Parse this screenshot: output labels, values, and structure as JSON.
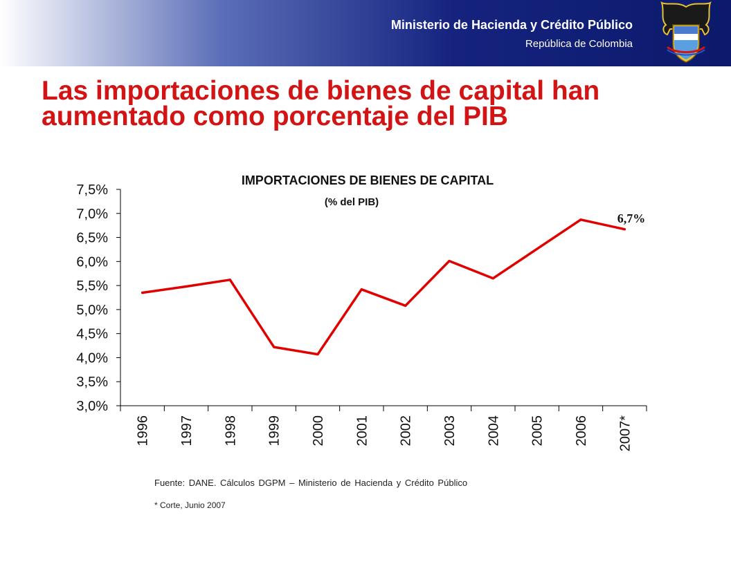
{
  "header": {
    "ministry": "Ministerio de Hacienda y Crédito Público",
    "country": "República de Colombia"
  },
  "slide": {
    "title": "Las importaciones de bienes de capital han aumentado como porcentaje del PIB"
  },
  "chart_data": {
    "type": "line",
    "title": "IMPORTACIONES DE BIENES DE CAPITAL",
    "subtitle": "(% del PIB)",
    "categories": [
      "1996",
      "1997",
      "1998",
      "1999",
      "2000",
      "2001",
      "2002",
      "2003",
      "2004",
      "2005",
      "2006",
      "2007*"
    ],
    "series": [
      {
        "values": [
          5.35,
          5.48,
          5.62,
          4.22,
          4.07,
          5.42,
          5.08,
          6.01,
          5.65,
          6.26,
          6.87,
          6.67
        ]
      }
    ],
    "ylim": [
      3.0,
      7.5
    ],
    "yticks": [
      "3,0%",
      "3,5%",
      "4,0%",
      "4,5%",
      "5,0%",
      "5,5%",
      "6,0%",
      "6,5%",
      "7,0%",
      "7,5%"
    ],
    "annotation": "6,7%",
    "line_color": "#e00000",
    "grid": false,
    "legend": "none"
  },
  "footer": {
    "source": "Fuente: DANE. Cálculos DGPM – Ministerio de Hacienda y Crédito Público",
    "note": "* Corte, Junio 2007"
  },
  "colors": {
    "title_red": "#d21414",
    "header_blue": "#0b1a6b"
  }
}
